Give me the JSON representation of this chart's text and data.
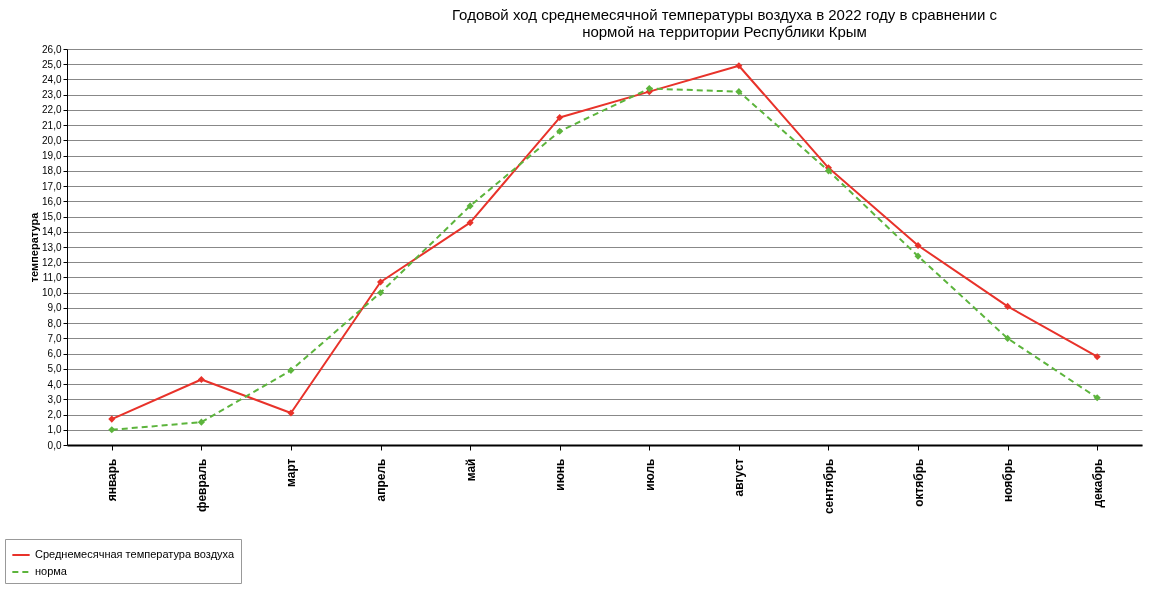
{
  "chart_data": {
    "type": "line",
    "title": [
      "Годовой ход среднемесячной температуры воздуха в 2022 году в сравнении с",
      "нормой на территории Республики Крым"
    ],
    "ylabel": "температура",
    "categories": [
      "январь",
      "февраль",
      "март",
      "апрель",
      "май",
      "июнь",
      "июль",
      "август",
      "сентябрь",
      "октябрь",
      "ноябрь",
      "декабрь"
    ],
    "series": [
      {
        "name": "Среднемесячная температура воздуха",
        "color": "#e8322a",
        "line_style": "solid",
        "values": [
          1.7,
          4.3,
          2.1,
          10.7,
          14.6,
          21.5,
          23.2,
          24.9,
          18.2,
          13.1,
          9.1,
          5.8
        ]
      },
      {
        "name": "норма",
        "color": "#5cb43c",
        "line_style": "dashed",
        "values": [
          1.0,
          1.5,
          4.9,
          10.0,
          15.7,
          20.6,
          23.4,
          23.2,
          18.0,
          12.4,
          7.0,
          3.1
        ]
      }
    ],
    "ylim": [
      0,
      26
    ],
    "yticks": [
      {
        "value": 0,
        "label": "0,0"
      },
      {
        "value": 1,
        "label": "1,0"
      },
      {
        "value": 2,
        "label": "2,0"
      },
      {
        "value": 3,
        "label": "3,0"
      },
      {
        "value": 4,
        "label": "4,0"
      },
      {
        "value": 5,
        "label": "5,0"
      },
      {
        "value": 6,
        "label": "6,0"
      },
      {
        "value": 7,
        "label": "7,0"
      },
      {
        "value": 8,
        "label": "8,0"
      },
      {
        "value": 9,
        "label": "9,0"
      },
      {
        "value": 10,
        "label": "10,0"
      },
      {
        "value": 11,
        "label": "11,0"
      },
      {
        "value": 12,
        "label": "12,0"
      },
      {
        "value": 13,
        "label": "13,0"
      },
      {
        "value": 14,
        "label": "14,0"
      },
      {
        "value": 15,
        "label": "15,0"
      },
      {
        "value": 16,
        "label": "16,0"
      },
      {
        "value": 17,
        "label": "17,0"
      },
      {
        "value": 18,
        "label": "18,0"
      },
      {
        "value": 19,
        "label": "19,0"
      },
      {
        "value": 20,
        "label": "20,0"
      },
      {
        "value": 21,
        "label": "21,0"
      },
      {
        "value": 22,
        "label": "22,0"
      },
      {
        "value": 23,
        "label": "23,0"
      },
      {
        "value": 24,
        "label": "24,0"
      },
      {
        "value": 25,
        "label": "25,0"
      },
      {
        "value": 26,
        "label": "26,0"
      }
    ],
    "grid": "y",
    "legend": "bottom left",
    "marker": "diamond"
  }
}
